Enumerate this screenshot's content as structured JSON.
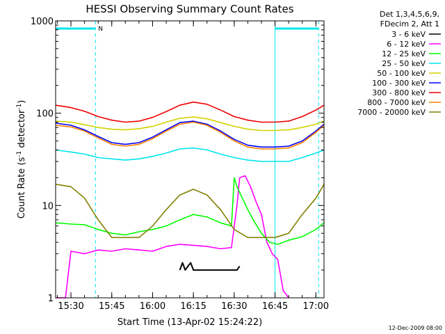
{
  "chart_data": {
    "type": "line",
    "title": "HESSI Observing Summary Count Rates",
    "xlabel": "Start Time (13-Apr-02 15:24:22)",
    "ylabel": "Count Rate (s",
    "ylabel_sup1": "-1",
    "ylabel_mid": " detector",
    "ylabel_sup2": "-1",
    "ylabel_end": ")",
    "y_scale": "log",
    "ylim": [
      1,
      1000
    ],
    "xlim": [
      "15:24:22",
      "17:03:00"
    ],
    "x_ticks": [
      "15:30",
      "15:45",
      "16:00",
      "16:15",
      "16:30",
      "16:45",
      "17:00"
    ],
    "y_ticks": [
      "1",
      "10",
      "100",
      "1000"
    ],
    "legend_header": [
      "Det 1,3,4,5,6,9,",
      "FDecim 2, Att 1"
    ],
    "legend_position": "right",
    "timestamp": "12-Dec-2009 08:00",
    "night_markers": {
      "color": "#00e5ee",
      "label": "N",
      "day_night_lines_solid": [
        "15:24:22",
        "16:45"
      ],
      "day_night_lines_dashed": [
        "15:39",
        "17:01"
      ],
      "bars": [
        [
          "15:24:22",
          "15:39"
        ],
        [
          "16:45",
          "17:01"
        ]
      ]
    },
    "series": [
      {
        "name": "3 - 6 keV",
        "color": "#000000",
        "x": [
          "16:10",
          "16:11",
          "16:12",
          "16:13",
          "16:14",
          "16:15",
          "16:31",
          "16:32"
        ],
        "values": [
          2.0,
          2.4,
          2.0,
          2.2,
          2.4,
          2.0,
          2.0,
          2.2
        ]
      },
      {
        "name": "6 - 12 keV",
        "color": "#ff00ff",
        "x": [
          "15:24:22",
          "15:28",
          "15:30",
          "15:35",
          "15:40",
          "15:45",
          "15:50",
          "15:55",
          "16:00",
          "16:05",
          "16:10",
          "16:15",
          "16:20",
          "16:25",
          "16:29",
          "16:31",
          "16:32",
          "16:34",
          "16:36",
          "16:38",
          "16:40",
          "16:42",
          "16:44",
          "16:46",
          "16:48",
          "16:50"
        ],
        "values": [
          1.0,
          1.0,
          3.2,
          3.0,
          3.3,
          3.2,
          3.4,
          3.3,
          3.2,
          3.6,
          3.8,
          3.7,
          3.6,
          3.4,
          3.5,
          10,
          20,
          21,
          16,
          11,
          8,
          4,
          3,
          2.6,
          1.2,
          1.0
        ]
      },
      {
        "name": "12 - 25 keV",
        "color": "#00ff00",
        "x": [
          "15:24:22",
          "15:30",
          "15:35",
          "15:40",
          "15:45",
          "15:50",
          "15:55",
          "16:00",
          "16:05",
          "16:10",
          "16:15",
          "16:20",
          "16:25",
          "16:29",
          "16:30",
          "16:31",
          "16:33",
          "16:35",
          "16:37",
          "16:40",
          "16:43",
          "16:46",
          "16:50",
          "16:55",
          "17:00",
          "17:03"
        ],
        "values": [
          6.5,
          6.3,
          6.2,
          5.5,
          5.0,
          4.8,
          5.2,
          5.5,
          6.0,
          7.0,
          8.0,
          7.5,
          6.5,
          6.0,
          20,
          16,
          12,
          9,
          7,
          5,
          4.0,
          3.8,
          4.2,
          4.6,
          5.5,
          6.5
        ]
      },
      {
        "name": "25 - 50 keV",
        "color": "#00e5ee",
        "x": [
          "15:24:22",
          "15:30",
          "15:35",
          "15:40",
          "15:45",
          "15:50",
          "15:55",
          "16:00",
          "16:05",
          "16:10",
          "16:15",
          "16:20",
          "16:25",
          "16:30",
          "16:35",
          "16:40",
          "16:45",
          "16:50",
          "16:55",
          "17:00",
          "17:03"
        ],
        "values": [
          40,
          38,
          36,
          33,
          32,
          31,
          32,
          34,
          37,
          41,
          42,
          40,
          36,
          33,
          31,
          30,
          30,
          30,
          33,
          37,
          40
        ]
      },
      {
        "name": "50 - 100 keV",
        "color": "#d2d200",
        "x": [
          "15:24:22",
          "15:30",
          "15:35",
          "15:40",
          "15:45",
          "15:50",
          "15:55",
          "16:00",
          "16:05",
          "16:10",
          "16:15",
          "16:20",
          "16:25",
          "16:30",
          "16:35",
          "16:40",
          "16:45",
          "16:50",
          "16:55",
          "17:00",
          "17:03"
        ],
        "values": [
          82,
          80,
          75,
          70,
          67,
          66,
          68,
          72,
          80,
          88,
          91,
          87,
          79,
          72,
          67,
          65,
          65,
          66,
          70,
          76,
          82
        ]
      },
      {
        "name": "100 - 300 keV",
        "color": "#0000ff",
        "x": [
          "15:24:22",
          "15:30",
          "15:35",
          "15:40",
          "15:45",
          "15:50",
          "15:55",
          "16:00",
          "16:05",
          "16:10",
          "16:15",
          "16:20",
          "16:25",
          "16:30",
          "16:35",
          "16:40",
          "16:45",
          "16:50",
          "16:55",
          "17:00",
          "17:03"
        ],
        "values": [
          78,
          74,
          66,
          56,
          48,
          46,
          48,
          55,
          66,
          79,
          82,
          76,
          64,
          52,
          45,
          43,
          43,
          44,
          50,
          64,
          76
        ]
      },
      {
        "name": "300 - 800 keV",
        "color": "#ee0000",
        "x": [
          "15:24:22",
          "15:30",
          "15:35",
          "15:40",
          "15:45",
          "15:50",
          "15:55",
          "16:00",
          "16:05",
          "16:10",
          "16:15",
          "16:20",
          "16:25",
          "16:30",
          "16:35",
          "16:40",
          "16:45",
          "16:50",
          "16:55",
          "17:00",
          "17:03"
        ],
        "values": [
          122,
          115,
          105,
          92,
          84,
          80,
          82,
          90,
          104,
          122,
          132,
          125,
          108,
          92,
          84,
          80,
          80,
          82,
          92,
          108,
          122
        ]
      },
      {
        "name": "800 - 7000 keV",
        "color": "#ff7f00",
        "x": [
          "15:24:22",
          "15:30",
          "15:35",
          "15:40",
          "15:45",
          "15:50",
          "15:55",
          "16:00",
          "16:05",
          "16:10",
          "16:15",
          "16:20",
          "16:25",
          "16:30",
          "16:35",
          "16:40",
          "16:45",
          "16:50",
          "16:55",
          "17:00",
          "17:03"
        ],
        "values": [
          74,
          71,
          64,
          54,
          46,
          44,
          46,
          53,
          64,
          76,
          80,
          74,
          62,
          50,
          43,
          41,
          41,
          42,
          48,
          62,
          74
        ]
      },
      {
        "name": "7000 - 20000 keV",
        "color": "#808000",
        "x": [
          "15:24:22",
          "15:30",
          "15:35",
          "15:40",
          "15:45",
          "15:50",
          "15:55",
          "16:00",
          "16:05",
          "16:10",
          "16:15",
          "16:20",
          "16:25",
          "16:30",
          "16:35",
          "16:40",
          "16:45",
          "16:50",
          "16:55",
          "17:00",
          "17:03"
        ],
        "values": [
          17,
          16,
          12,
          7,
          4.5,
          4.5,
          4.5,
          6,
          9,
          13,
          15,
          13,
          9,
          5.5,
          4.5,
          4.5,
          4.5,
          5,
          8,
          12,
          17
        ]
      }
    ]
  }
}
